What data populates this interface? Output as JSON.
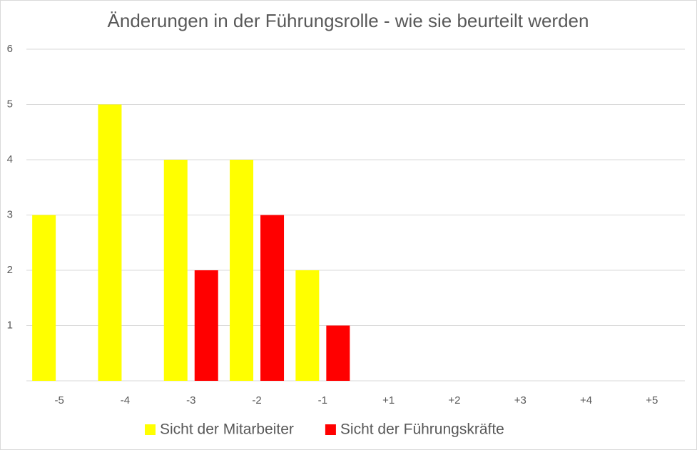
{
  "chart_data": {
    "type": "bar",
    "title": "Änderungen in der Führungsrolle - wie sie beurteilt werden",
    "categories": [
      "-5",
      "-4",
      "-3",
      "-2",
      "-1",
      "+1",
      "+2",
      "+3",
      "+4",
      "+5"
    ],
    "series": [
      {
        "name": "Sicht der Mitarbeiter",
        "color": "#ffff00",
        "values": [
          3,
          5,
          4,
          4,
          2,
          null,
          null,
          null,
          null,
          null
        ]
      },
      {
        "name": "Sicht der Führungskräfte",
        "color": "#ff0000",
        "values": [
          null,
          null,
          2,
          3,
          1,
          null,
          null,
          null,
          null,
          null
        ]
      }
    ],
    "ylim": [
      0,
      6
    ],
    "yticks": [
      1,
      2,
      3,
      4,
      5,
      6
    ],
    "grid": true,
    "legend": "bottom"
  }
}
